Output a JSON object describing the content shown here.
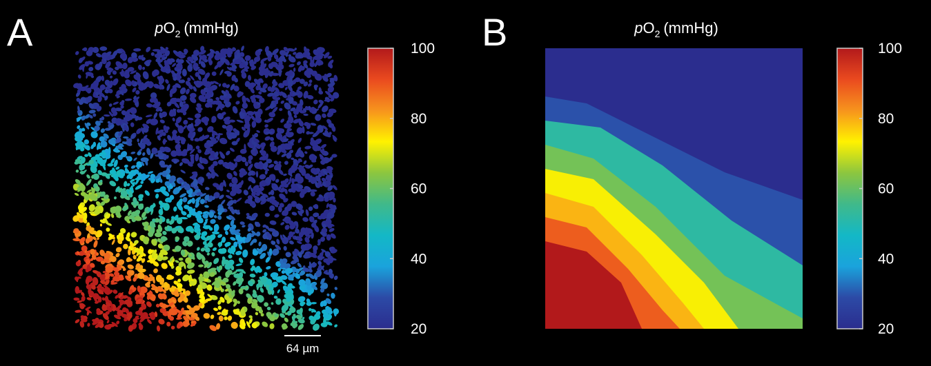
{
  "chart_data": [
    {
      "type": "heatmap",
      "panel_label": "A",
      "title": {
        "italic": "p",
        "text": "O",
        "subscript": "2",
        "unit": "(mmHg)"
      },
      "clim": [
        20,
        100
      ],
      "cticks": [
        20,
        40,
        60,
        80,
        100
      ],
      "scale_bar": "64 µm",
      "colormap": [
        "#2b2d8e",
        "#2c4aa6",
        "#1aa3dc",
        "#13b8c6",
        "#40b98a",
        "#8cc63f",
        "#fff200",
        "#f7941d",
        "#ea4a1f",
        "#b2191b"
      ]
    },
    {
      "type": "contour",
      "panel_label": "B",
      "title": {
        "italic": "p",
        "text": "O",
        "subscript": "2",
        "unit": "(mmHg)"
      },
      "clim": [
        20,
        100
      ],
      "cticks": [
        20,
        40,
        60,
        80,
        100
      ],
      "colormap": [
        "#2b2d8e",
        "#2c4aa6",
        "#1aa3dc",
        "#13b8c6",
        "#40b98a",
        "#8cc63f",
        "#fff200",
        "#f7941d",
        "#ea4a1f",
        "#b2191b"
      ]
    }
  ]
}
